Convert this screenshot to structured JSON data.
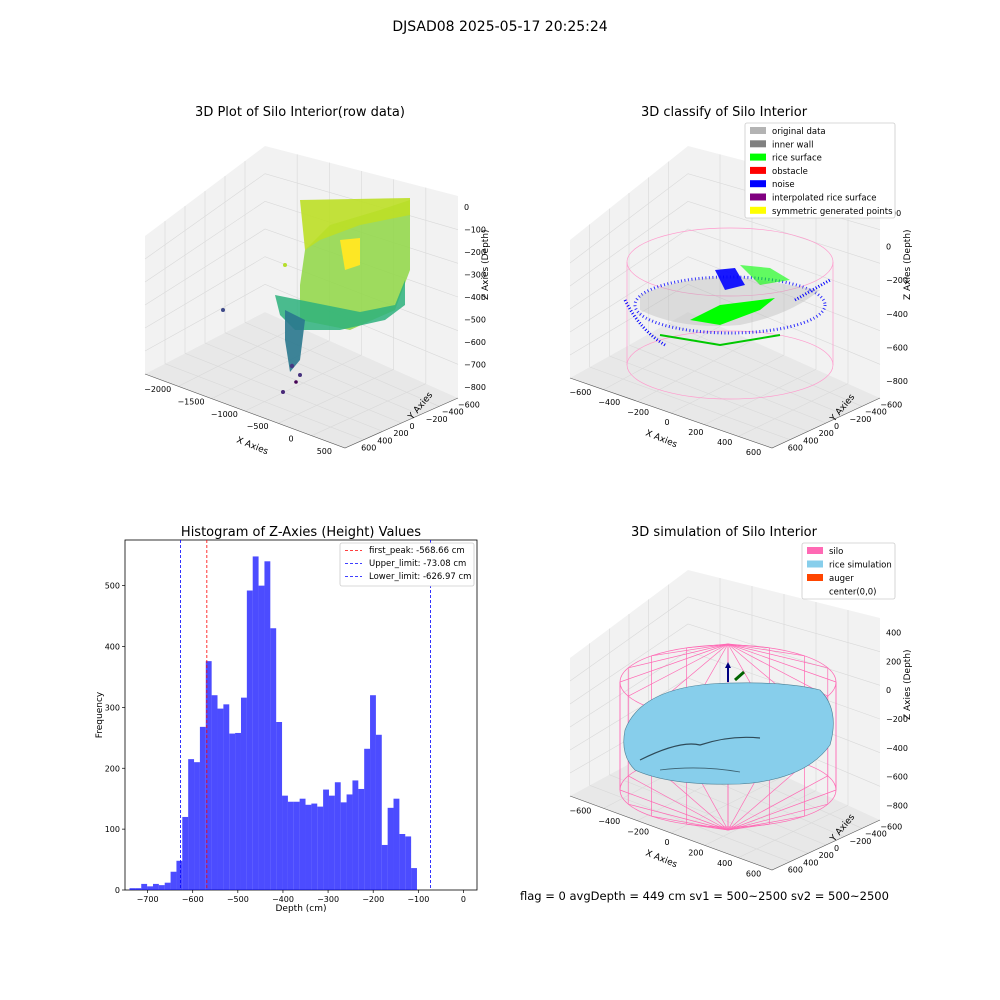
{
  "figure": {
    "suptitle": "DJSAD08 2025-05-17 20:25:24",
    "status": "flag = 0     avgDepth = 449 cm  sv1 = 500~2500  sv2 = 500~2500"
  },
  "panel1": {
    "title": "3D Plot of Silo Interior(row data)",
    "xlabel": "X Axies",
    "ylabel": "Y Axies",
    "zlabel": "Z Axies (Depth)",
    "xticks": [
      "−2000",
      "−1500",
      "−1000",
      "−500",
      "0",
      "500"
    ],
    "yticks": [
      "−600",
      "−400",
      "−200",
      "0",
      "200",
      "400",
      "600"
    ],
    "zticks": [
      "0",
      "−100",
      "−200",
      "−300",
      "−400",
      "−500",
      "−600",
      "−700",
      "−800"
    ],
    "colormap": "viridis"
  },
  "panel2": {
    "title": "3D classify of Silo Interior",
    "xlabel": "X Axies",
    "ylabel": "Y Axies",
    "zlabel": "Z Axies (Depth)",
    "xticks": [
      "−600",
      "−400",
      "−200",
      "0",
      "200",
      "400",
      "600"
    ],
    "yticks": [
      "−600",
      "−400",
      "−200",
      "0",
      "200",
      "400",
      "600"
    ],
    "zticks": [
      "200",
      "0",
      "−200",
      "−400",
      "−600",
      "−800"
    ],
    "legend": [
      {
        "label": "original data",
        "color": "#b3b3b3"
      },
      {
        "label": "inner wall",
        "color": "#808080"
      },
      {
        "label": "rice surface",
        "color": "#00ff00"
      },
      {
        "label": "obstacle",
        "color": "#ff0000"
      },
      {
        "label": "noise",
        "color": "#0000ff"
      },
      {
        "label": "interpolated rice surface",
        "color": "#800080"
      },
      {
        "label": "symmetric generated points",
        "color": "#ffff00"
      }
    ]
  },
  "panel4": {
    "title": "3D simulation of Silo Interior",
    "xlabel": "X Axies",
    "ylabel": "Y Axies",
    "zlabel": "Z Axies (Depth)",
    "xticks": [
      "−600",
      "−400",
      "−200",
      "0",
      "200",
      "400",
      "600"
    ],
    "yticks": [
      "−600",
      "−400",
      "−200",
      "0",
      "200",
      "400",
      "600"
    ],
    "zticks": [
      "400",
      "200",
      "0",
      "−200",
      "−400",
      "−600",
      "−800"
    ],
    "legend": [
      {
        "label": "silo",
        "color": "#ff69b4"
      },
      {
        "label": "rice simulation",
        "color": "#87ceeb"
      },
      {
        "label": "auger",
        "color": "#ff4500"
      },
      {
        "label": "center(0,0)",
        "color": "#ffffff"
      }
    ]
  },
  "chart_data": {
    "type": "bar",
    "title": "Histogram of Z-Axies (Height) Values",
    "xlabel": "Depth (cm)",
    "ylabel": "Frequency",
    "xlim": [
      -750,
      30
    ],
    "ylim": [
      0,
      575
    ],
    "xticks": [
      "−700",
      "−600",
      "−500",
      "−400",
      "−300",
      "−200",
      "−100",
      "0"
    ],
    "yticks": [
      "0",
      "100",
      "200",
      "300",
      "400",
      "500"
    ],
    "bar_color": "#0000ff",
    "bins": [
      [
        -740,
        3
      ],
      [
        -727,
        3
      ],
      [
        -714,
        10
      ],
      [
        -701,
        6
      ],
      [
        -688,
        10
      ],
      [
        -675,
        8
      ],
      [
        -662,
        12
      ],
      [
        -649,
        30
      ],
      [
        -636,
        48
      ],
      [
        -623,
        120
      ],
      [
        -610,
        215
      ],
      [
        -597,
        210
      ],
      [
        -584,
        268
      ],
      [
        -571,
        376
      ],
      [
        -558,
        320
      ],
      [
        -545,
        298
      ],
      [
        -532,
        305
      ],
      [
        -519,
        257
      ],
      [
        -506,
        258
      ],
      [
        -493,
        316
      ],
      [
        -480,
        492
      ],
      [
        -467,
        548
      ],
      [
        -454,
        500
      ],
      [
        -441,
        540
      ],
      [
        -428,
        430
      ],
      [
        -415,
        276
      ],
      [
        -402,
        155
      ],
      [
        -389,
        145
      ],
      [
        -376,
        145
      ],
      [
        -363,
        150
      ],
      [
        -350,
        140
      ],
      [
        -337,
        142
      ],
      [
        -324,
        137
      ],
      [
        -311,
        165
      ],
      [
        -298,
        155
      ],
      [
        -285,
        177
      ],
      [
        -272,
        144
      ],
      [
        -259,
        157
      ],
      [
        -246,
        180
      ],
      [
        -233,
        166
      ],
      [
        -220,
        232
      ],
      [
        -207,
        320
      ],
      [
        -194,
        255
      ],
      [
        -181,
        74
      ],
      [
        -168,
        135
      ],
      [
        -155,
        150
      ],
      [
        -142,
        92
      ],
      [
        -129,
        88
      ],
      [
        -116,
        36
      ]
    ],
    "bin_width": 13,
    "vlines": [
      {
        "x": -568.66,
        "color": "#ff0000",
        "label": "first_peak: -568.66 cm"
      },
      {
        "x": -73.08,
        "color": "#0000ff",
        "label": "Upper_limit: -73.08 cm"
      },
      {
        "x": -626.97,
        "color": "#0000ff",
        "label": "Lower_limit: -626.97 cm"
      }
    ],
    "legend_position": "top-right"
  }
}
